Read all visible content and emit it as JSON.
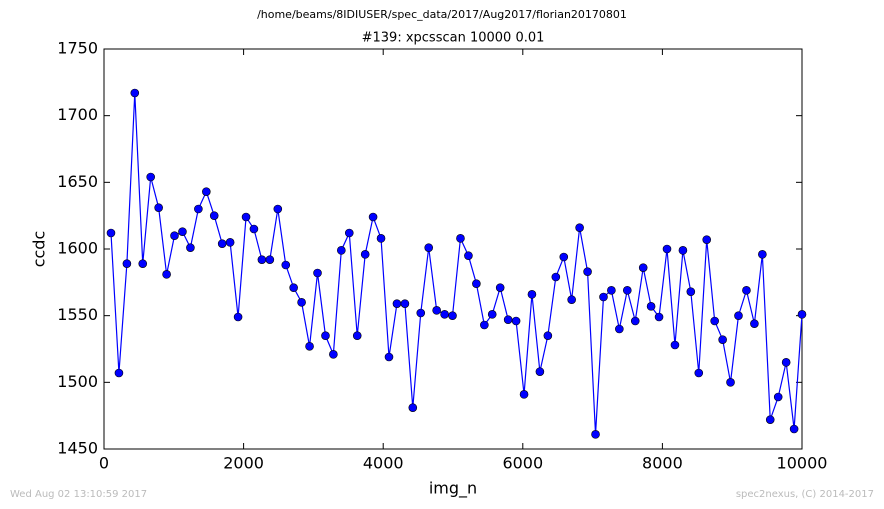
{
  "chart_data": {
    "type": "line",
    "suptitle": "/home/beams/8IDIUSER/spec_data/2017/Aug2017/florian20170801",
    "title": "#139: xpcsscan 10000 0.01",
    "x_label": "img_n",
    "y_label": "ccdc",
    "footer_left": "Wed Aug 02 13:10:59 2017",
    "footer_right": "spec2nexus, (C) 2014-2017",
    "x": [
      100,
      214,
      328,
      441,
      555,
      669,
      783,
      897,
      1010,
      1124,
      1238,
      1352,
      1466,
      1579,
      1693,
      1807,
      1921,
      2035,
      2148,
      2262,
      2376,
      2490,
      2604,
      2717,
      2831,
      2945,
      3059,
      3173,
      3286,
      3400,
      3514,
      3628,
      3742,
      3855,
      3969,
      4083,
      4197,
      4311,
      4424,
      4538,
      4652,
      4766,
      4880,
      4993,
      5107,
      5221,
      5335,
      5449,
      5562,
      5676,
      5790,
      5904,
      6018,
      6131,
      6245,
      6359,
      6473,
      6587,
      6700,
      6814,
      6928,
      7042,
      7156,
      7269,
      7383,
      7497,
      7611,
      7725,
      7838,
      7952,
      8066,
      8180,
      8294,
      8407,
      8521,
      8635,
      8749,
      8863,
      8976,
      9090,
      9204,
      9318,
      9432,
      9545,
      9659,
      9773,
      9887,
      10000
    ],
    "series": [
      {
        "color": "#0000ff",
        "values": [
          1612,
          1507,
          1589,
          1717,
          1589,
          1654,
          1631,
          1581,
          1610,
          1613,
          1601,
          1630,
          1643,
          1625,
          1604,
          1605,
          1549,
          1624,
          1615,
          1592,
          1592,
          1630,
          1588,
          1571,
          1560,
          1527,
          1582,
          1535,
          1521,
          1599,
          1612,
          1535,
          1596,
          1624,
          1608,
          1519,
          1559,
          1559,
          1481,
          1552,
          1601,
          1554,
          1551,
          1550,
          1608,
          1595,
          1574,
          1543,
          1551,
          1571,
          1547,
          1546,
          1491,
          1566,
          1508,
          1535,
          1579,
          1594,
          1562,
          1616,
          1583,
          1461,
          1564,
          1569,
          1540,
          1569,
          1546,
          1586,
          1557,
          1549,
          1600,
          1528,
          1599,
          1568,
          1507,
          1607,
          1546,
          1532,
          1500,
          1550,
          1569,
          1544,
          1596,
          1472,
          1489,
          1515,
          1465,
          1551
        ]
      }
    ],
    "xlim": [
      0,
      10000
    ],
    "xticks": [
      0,
      2000,
      4000,
      6000,
      8000,
      10000
    ],
    "ylim": [
      1450,
      1750
    ],
    "yticks": [
      1450,
      1500,
      1550,
      1600,
      1650,
      1700,
      1750
    ]
  }
}
